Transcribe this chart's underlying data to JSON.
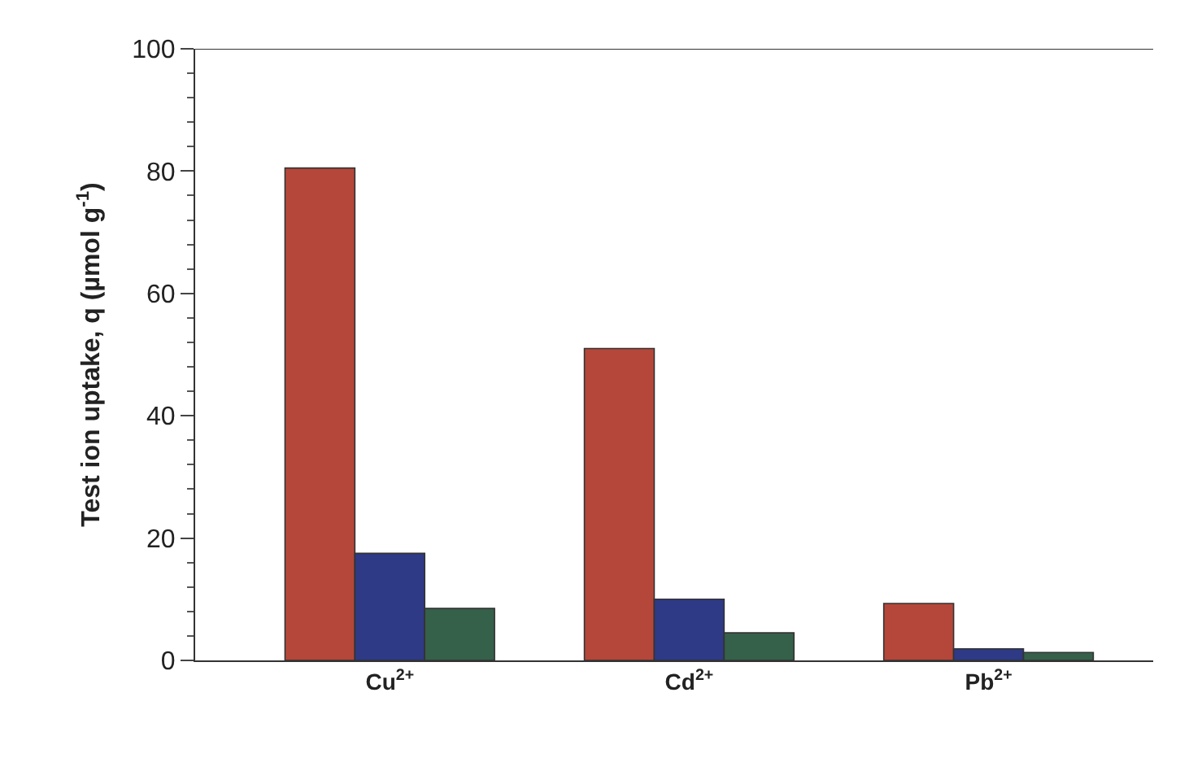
{
  "chart_data": {
    "type": "bar",
    "ylabel": "Test ion uptake, q (µmol g$^{-1}$)",
    "categories": [
      "Cu$^{2+}$",
      "Cd$^{2+}$",
      "Pb$^{2+}$"
    ],
    "series": [
      {
        "color": "#b5473a",
        "values": [
          80.5,
          51,
          9.3
        ]
      },
      {
        "color": "#2e3a86",
        "values": [
          17.5,
          10,
          1.9
        ]
      },
      {
        "color": "#35604a",
        "values": [
          8.5,
          4.5,
          1.3
        ]
      }
    ],
    "ylim": [
      0,
      100
    ],
    "yticks": [
      0,
      20,
      40,
      60,
      80,
      100
    ]
  }
}
